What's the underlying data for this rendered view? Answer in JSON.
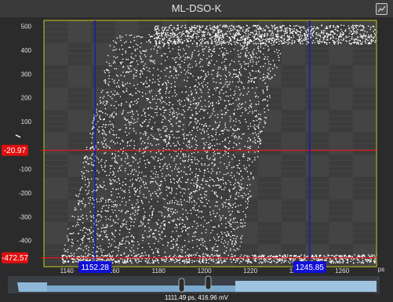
{
  "window": {
    "title": "ML-DSO-K"
  },
  "toolbar": {
    "export_icon": "chart-export-icon"
  },
  "colors": {
    "background": "#2b2b2b",
    "plot_background": "#444444",
    "plot_border": "#c8c81e",
    "vertical_cursor": "#1414c8",
    "horizontal_cursor": "#e01818",
    "cursor_label_blue": "#1010d8",
    "cursor_label_red": "#e00f0f",
    "samples": "#ffffff",
    "scrollbar": "#7aa8cc"
  },
  "cursors": {
    "vertical": [
      {
        "value": 1152.28,
        "label": "1152.28"
      },
      {
        "value": 1245.85,
        "label": "1245.85"
      }
    ],
    "horizontal": [
      {
        "value": -20.97,
        "label": "-20.97"
      },
      {
        "value": -472.57,
        "label": "-472.57"
      }
    ]
  },
  "status": {
    "readout": "1111.49 ps, 416.96 mV"
  },
  "chart_data": {
    "type": "scatter",
    "title": "ML-DSO-K",
    "xlabel": "ps",
    "ylabel": "",
    "xlim": [
      1130,
      1275
    ],
    "ylim": [
      -510,
      525
    ],
    "x_ticks": [
      "1140",
      "1160",
      "1180",
      "1200",
      "1220",
      "1240",
      "1260"
    ],
    "y_ticks": [
      "500",
      "400",
      "300",
      "200",
      "100",
      "-100",
      "-200",
      "-300",
      "-400"
    ],
    "grid": true,
    "series": [
      {
        "values_description_free": true,
        "points_low": {
          "y_min": -495,
          "y_max": -460,
          "x_from": 1138,
          "x_to": 1275
        },
        "points_high": {
          "y_min": 425,
          "y_max": 505,
          "x_from": 1178,
          "x_to": 1275
        },
        "transition_band": {
          "x_start_low": 1138,
          "x_start_high": 1160,
          "x_end_low": 1215,
          "x_end_high": 1235,
          "y_from": -460,
          "y_to": 470
        }
      }
    ]
  }
}
